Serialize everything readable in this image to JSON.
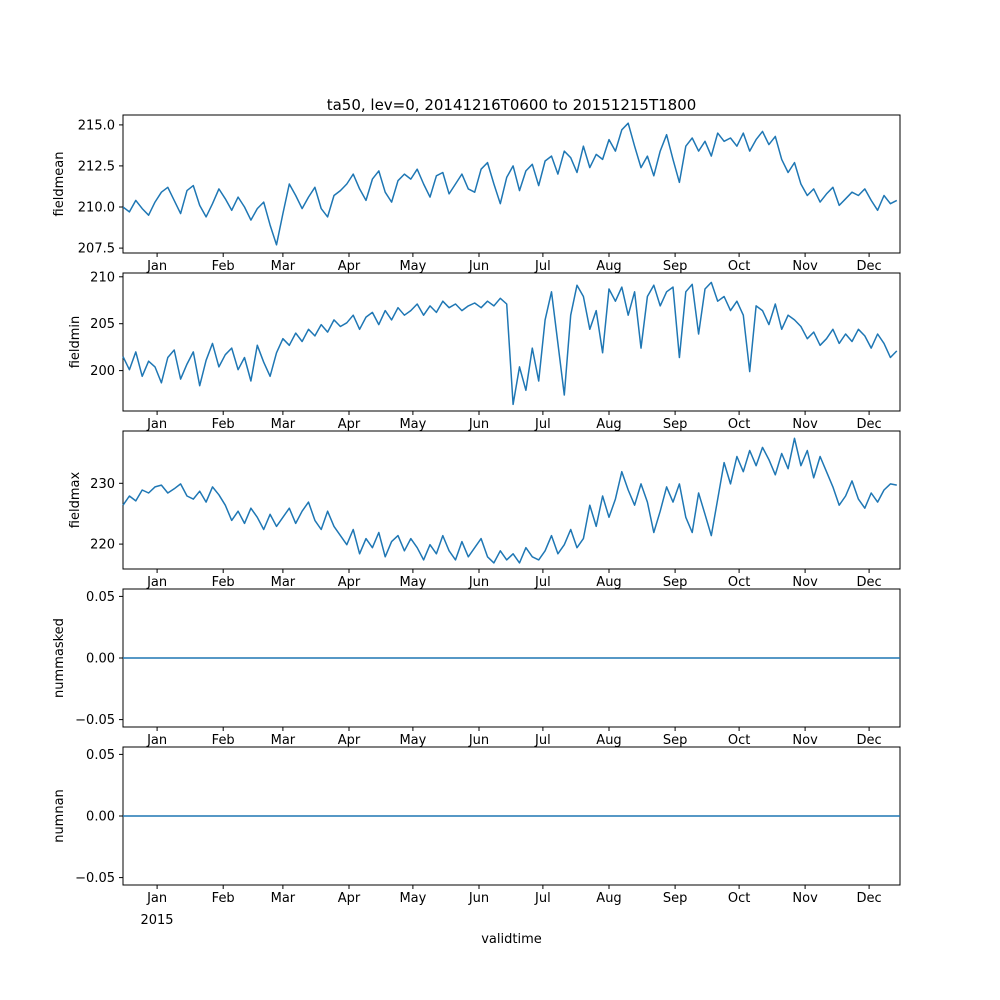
{
  "chart_data": {
    "type": "line",
    "title": "ta50, lev=0, 20141216T0600 to 20151215T1800",
    "xlabel": "validtime",
    "x_year_label": "2015",
    "line_color": "#1f77b4",
    "xlim": [
      0,
      364.5
    ],
    "xticks": {
      "positions": [
        16,
        47,
        75,
        106,
        136,
        167,
        197,
        228,
        259,
        289,
        320,
        350
      ],
      "labels": [
        "Jan",
        "Feb",
        "Mar",
        "Apr",
        "May",
        "Jun",
        "Jul",
        "Aug",
        "Sep",
        "Oct",
        "Nov",
        "Dec"
      ]
    },
    "panels": [
      {
        "ylabel": "fieldmean",
        "ylim": [
          207.2,
          215.6
        ],
        "yticks": [
          207.5,
          210.0,
          212.5,
          215.0
        ],
        "ytick_labels": [
          "207.5",
          "210.0",
          "212.5",
          "215.0"
        ],
        "x0": 0,
        "dx": 3,
        "values": [
          210.0,
          209.7,
          210.4,
          209.9,
          209.5,
          210.3,
          210.9,
          211.2,
          210.4,
          209.6,
          211.0,
          211.3,
          210.1,
          209.4,
          210.2,
          211.1,
          210.5,
          209.8,
          210.6,
          210.0,
          209.2,
          209.9,
          210.3,
          208.9,
          207.7,
          209.6,
          211.4,
          210.7,
          209.9,
          210.6,
          211.2,
          209.9,
          209.4,
          210.7,
          211.0,
          211.4,
          212.0,
          211.1,
          210.4,
          211.7,
          212.2,
          210.9,
          210.3,
          211.6,
          212.0,
          211.7,
          212.3,
          211.4,
          210.6,
          211.9,
          212.1,
          210.8,
          211.4,
          212.0,
          211.1,
          210.9,
          212.3,
          212.7,
          211.4,
          210.2,
          211.8,
          212.5,
          211.0,
          212.2,
          212.6,
          211.3,
          212.8,
          213.1,
          212.0,
          213.4,
          213.0,
          212.1,
          213.7,
          212.4,
          213.2,
          212.9,
          214.1,
          213.4,
          214.7,
          215.1,
          213.7,
          212.4,
          213.1,
          211.9,
          213.4,
          214.4,
          212.9,
          211.5,
          213.7,
          214.2,
          213.4,
          214.0,
          213.1,
          214.5,
          214.0,
          214.2,
          213.7,
          214.5,
          213.4,
          214.1,
          214.6,
          213.8,
          214.3,
          212.9,
          212.1,
          212.7,
          211.4,
          210.7,
          211.1,
          210.3,
          210.8,
          211.2,
          210.1,
          210.5,
          210.9,
          210.7,
          211.1,
          210.4,
          209.8,
          210.7,
          210.2,
          210.4
        ]
      },
      {
        "ylabel": "fieldmin",
        "ylim": [
          195.7,
          210.4
        ],
        "yticks": [
          200,
          205,
          210
        ],
        "ytick_labels": [
          "200",
          "205",
          "210"
        ],
        "x0": 0,
        "dx": 3,
        "values": [
          201.5,
          200.1,
          202.0,
          199.4,
          201.0,
          200.4,
          198.7,
          201.4,
          202.2,
          199.1,
          200.7,
          202.0,
          198.4,
          201.1,
          202.9,
          200.4,
          201.7,
          202.4,
          200.1,
          201.4,
          198.9,
          202.7,
          200.9,
          199.4,
          201.9,
          203.4,
          202.7,
          204.0,
          203.1,
          204.4,
          203.7,
          204.9,
          204.1,
          205.4,
          204.7,
          205.1,
          205.9,
          204.4,
          205.7,
          206.2,
          204.9,
          206.4,
          205.4,
          206.7,
          205.9,
          206.4,
          207.1,
          205.9,
          206.9,
          206.2,
          207.4,
          206.7,
          207.1,
          206.4,
          206.9,
          207.2,
          206.7,
          207.4,
          206.9,
          207.7,
          207.1,
          196.4,
          200.4,
          197.9,
          202.4,
          198.9,
          205.4,
          208.4,
          202.9,
          197.4,
          205.9,
          209.1,
          207.9,
          204.4,
          206.4,
          201.9,
          208.7,
          207.4,
          208.9,
          205.9,
          208.4,
          202.4,
          207.9,
          209.1,
          206.9,
          208.4,
          208.9,
          201.4,
          208.4,
          209.2,
          203.9,
          208.7,
          209.4,
          207.4,
          207.9,
          206.4,
          207.4,
          205.9,
          199.9,
          206.9,
          206.4,
          204.9,
          207.1,
          204.4,
          205.9,
          205.4,
          204.7,
          203.4,
          204.1,
          202.7,
          203.4,
          204.4,
          202.9,
          203.9,
          203.1,
          204.4,
          203.7,
          202.4,
          203.9,
          202.9,
          201.4,
          202.1
        ]
      },
      {
        "ylabel": "fieldmax",
        "ylim": [
          215.9,
          238.6
        ],
        "yticks": [
          220,
          230
        ],
        "ytick_labels": [
          "220",
          "230"
        ],
        "x0": 0,
        "dx": 3,
        "values": [
          226.4,
          227.9,
          227.1,
          228.9,
          228.4,
          229.4,
          229.7,
          228.4,
          229.1,
          229.9,
          227.9,
          227.4,
          228.7,
          226.9,
          229.4,
          228.1,
          226.4,
          223.9,
          225.4,
          223.4,
          225.9,
          224.4,
          222.4,
          224.9,
          222.9,
          224.4,
          225.9,
          223.4,
          225.4,
          226.9,
          223.9,
          222.4,
          225.4,
          222.9,
          221.4,
          219.9,
          222.4,
          218.4,
          220.9,
          219.4,
          221.9,
          217.9,
          220.4,
          221.4,
          218.9,
          220.9,
          219.4,
          217.4,
          219.9,
          218.4,
          221.4,
          218.9,
          217.4,
          220.4,
          217.9,
          219.4,
          220.9,
          217.9,
          216.9,
          218.9,
          217.4,
          218.4,
          216.9,
          219.4,
          217.9,
          217.4,
          218.9,
          221.4,
          218.4,
          219.9,
          222.4,
          219.4,
          220.9,
          226.4,
          222.9,
          227.9,
          224.4,
          227.4,
          231.9,
          228.9,
          226.4,
          229.9,
          226.9,
          221.9,
          225.4,
          229.4,
          226.9,
          229.9,
          224.4,
          221.9,
          228.4,
          224.9,
          221.4,
          227.4,
          233.4,
          229.9,
          234.4,
          231.9,
          235.4,
          232.9,
          235.9,
          233.9,
          231.4,
          234.9,
          232.4,
          237.4,
          232.9,
          235.4,
          230.9,
          234.4,
          231.9,
          229.4,
          226.4,
          227.9,
          230.4,
          227.4,
          225.9,
          228.4,
          226.9,
          228.9,
          229.9,
          229.7
        ]
      },
      {
        "ylabel": "nummasked",
        "ylim": [
          -0.056,
          0.056
        ],
        "yticks": [
          -0.05,
          0.0,
          0.05
        ],
        "ytick_labels": [
          "−0.05",
          "0.00",
          "0.05"
        ],
        "x": [
          0,
          364.5
        ],
        "values": [
          0,
          0
        ]
      },
      {
        "ylabel": "numnan",
        "ylim": [
          -0.056,
          0.056
        ],
        "yticks": [
          -0.05,
          0.0,
          0.05
        ],
        "ytick_labels": [
          "−0.05",
          "0.00",
          "0.05"
        ],
        "x": [
          0,
          364.5
        ],
        "values": [
          0,
          0
        ]
      }
    ]
  }
}
